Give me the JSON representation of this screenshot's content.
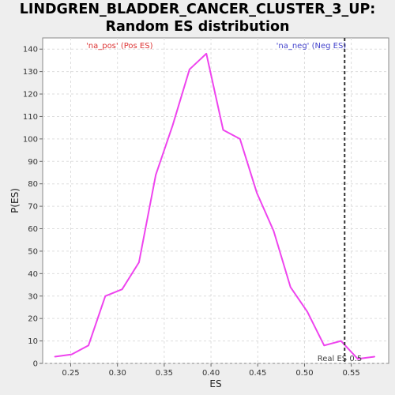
{
  "chart_data": {
    "type": "line",
    "title_line1": "LINDGREN_BLADDER_CANCER_CLUSTER_3_UP:",
    "title_line2": "Random ES distribution",
    "xlabel": "ES",
    "ylabel": "P(ES)",
    "xlim": [
      0.22,
      0.59
    ],
    "ylim": [
      0,
      145
    ],
    "xticks": [
      0.25,
      0.3,
      0.35,
      0.4,
      0.45,
      0.5,
      0.55
    ],
    "xtick_labels": [
      "0.25",
      "0.30",
      "0.35",
      "0.40",
      "0.45",
      "0.50",
      "0.55"
    ],
    "yticks": [
      0,
      10,
      20,
      30,
      40,
      50,
      60,
      70,
      80,
      90,
      100,
      110,
      120,
      130,
      140
    ],
    "grid": true,
    "series": [
      {
        "color": "#ee44ee",
        "x": [
          0.233,
          0.251,
          0.269,
          0.287,
          0.305,
          0.323,
          0.341,
          0.359,
          0.377,
          0.395,
          0.413,
          0.431,
          0.449,
          0.467,
          0.485,
          0.503,
          0.521,
          0.539,
          0.557,
          0.575
        ],
        "y": [
          3,
          4,
          8,
          30,
          33,
          45,
          84,
          106,
          131,
          138,
          104,
          100,
          76,
          59,
          34,
          23,
          8,
          10,
          2,
          3
        ]
      }
    ],
    "legend_pos": "'na_pos' (Pos ES)",
    "legend_neg": "'na_neg' (Neg ES)",
    "real_es": {
      "value": 0.5429,
      "label": "Real ES 0.5"
    }
  }
}
